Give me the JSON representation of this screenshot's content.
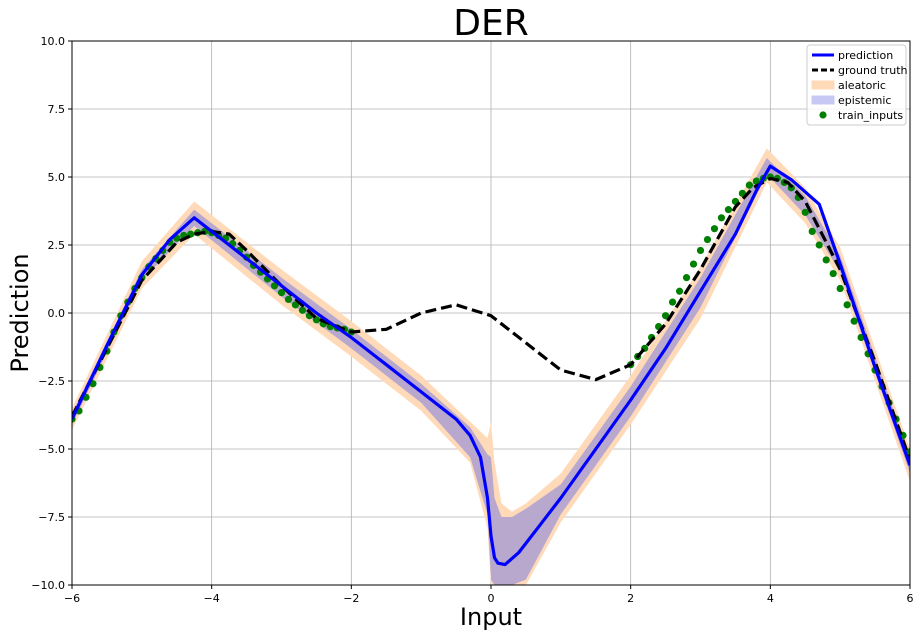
{
  "chart_data": {
    "type": "line",
    "title": "DER",
    "xlabel": "Input",
    "ylabel": "Prediction",
    "xlim": [
      -6,
      6
    ],
    "ylim": [
      -10,
      10
    ],
    "xticks": [
      -6,
      -4,
      -2,
      0,
      2,
      4,
      6
    ],
    "xtick_labels": [
      "−6",
      "−4",
      "−2",
      "0",
      "2",
      "4",
      "6"
    ],
    "yticks": [
      -10,
      -7.5,
      -5,
      -2.5,
      0,
      2.5,
      5,
      7.5,
      10
    ],
    "ytick_labels": [
      "−10.0",
      "−7.5",
      "−5.0",
      "−2.5",
      "0.0",
      "2.5",
      "5.0",
      "7.5",
      "10.0"
    ],
    "grid": true,
    "legend_position": "top-right",
    "colors": {
      "prediction": "#0000ff",
      "ground_truth": "#000000",
      "aleatoric": "#ffdab9",
      "epistemic": "#7f7fdf",
      "train_inputs": "#008000",
      "grid": "#b0b0b0"
    },
    "legend": [
      {
        "label": "prediction",
        "kind": "line",
        "color": "#0000ff"
      },
      {
        "label": "ground truth",
        "kind": "dashed",
        "color": "#000000"
      },
      {
        "label": "aleatoric",
        "kind": "patch",
        "color": "#ffdab9"
      },
      {
        "label": "epistemic",
        "kind": "patch",
        "color": "#c8c8f5"
      },
      {
        "label": "train_inputs",
        "kind": "marker",
        "color": "#008000"
      }
    ],
    "series": [
      {
        "name": "prediction",
        "x": [
          -6,
          -5.5,
          -5,
          -4.6,
          -4.25,
          -4,
          -3.5,
          -3,
          -2.5,
          -2,
          -1.5,
          -1,
          -0.5,
          -0.3,
          -0.15,
          -0.05,
          0,
          0.05,
          0.1,
          0.2,
          0.4,
          0.7,
          1,
          1.5,
          2,
          2.5,
          3,
          3.5,
          3.8,
          4,
          4.3,
          4.7,
          5,
          5.5,
          6
        ],
        "y": [
          -3.9,
          -1.2,
          1.4,
          2.7,
          3.5,
          3.0,
          2.0,
          1.0,
          0.0,
          -0.9,
          -1.9,
          -2.9,
          -3.9,
          -4.5,
          -5.3,
          -6.8,
          -8.2,
          -9.0,
          -9.2,
          -9.25,
          -8.8,
          -7.8,
          -6.8,
          -5.0,
          -3.2,
          -1.3,
          0.8,
          2.9,
          4.5,
          5.4,
          4.9,
          4.0,
          1.8,
          -2.0,
          -5.6
        ]
      },
      {
        "name": "ground truth",
        "x": [
          -6,
          -5.5,
          -5,
          -4.5,
          -4.25,
          -4,
          -3.75,
          -3.5,
          -3,
          -2.5,
          -2,
          -1.5,
          -1,
          -0.5,
          0,
          0.5,
          1,
          1.5,
          2,
          2.5,
          3,
          3.5,
          3.75,
          4,
          4.25,
          4.5,
          5,
          5.5,
          6
        ],
        "y": [
          -3.8,
          -1.3,
          1.2,
          2.6,
          2.9,
          3.0,
          2.9,
          2.3,
          1.0,
          -0.2,
          -0.7,
          -0.6,
          0.0,
          0.3,
          -0.1,
          -1.1,
          -2.1,
          -2.45,
          -1.9,
          -0.4,
          1.6,
          3.9,
          4.6,
          4.95,
          4.8,
          4.1,
          1.6,
          -1.8,
          -5.4
        ]
      },
      {
        "name": "aleatoric",
        "x": [
          -6,
          -5,
          -4.25,
          -3,
          -2,
          -1,
          -0.3,
          -0.05,
          0,
          0.05,
          0.15,
          0.3,
          0.5,
          1,
          2,
          3,
          3.95,
          4.5,
          5,
          6
        ],
        "upper": [
          -3.5,
          1.9,
          4.1,
          1.6,
          -0.3,
          -2.3,
          -4.0,
          -4.6,
          -4.0,
          -5.5,
          -7.0,
          -7.3,
          -7.0,
          -5.9,
          -2.3,
          1.7,
          6.05,
          4.6,
          2.4,
          -5.0
        ],
        "lower": [
          -4.3,
          0.9,
          2.9,
          0.3,
          -1.6,
          -3.6,
          -5.5,
          -7.9,
          -10,
          -10,
          -10,
          -10,
          -10,
          -7.7,
          -4.1,
          -0.2,
          4.8,
          3.3,
          1.2,
          -6.2
        ]
      },
      {
        "name": "epistemic",
        "x": [
          -6,
          -5,
          -4.25,
          -3,
          -2,
          -1,
          -0.3,
          -0.05,
          0,
          0.05,
          0.15,
          0.3,
          0.5,
          1,
          2,
          3,
          3.95,
          4.5,
          5,
          6
        ],
        "upper": [
          -3.7,
          1.6,
          3.8,
          1.3,
          -0.6,
          -2.6,
          -4.2,
          -5.2,
          -5.3,
          -6.8,
          -7.5,
          -7.5,
          -7.2,
          -6.3,
          -2.7,
          1.3,
          5.7,
          4.3,
          2.1,
          -5.3
        ],
        "lower": [
          -4.1,
          1.2,
          3.2,
          0.6,
          -1.3,
          -3.3,
          -5.3,
          -7.4,
          -9.8,
          -10,
          -10,
          -10,
          -9.8,
          -7.4,
          -3.8,
          0.2,
          5.1,
          3.6,
          1.5,
          -5.9
        ]
      },
      {
        "name": "train_inputs",
        "x": [
          -6,
          -5.9,
          -5.8,
          -5.7,
          -5.6,
          -5.5,
          -5.4,
          -5.3,
          -5.2,
          -5.1,
          -5,
          -4.9,
          -4.8,
          -4.7,
          -4.6,
          -4.5,
          -4.4,
          -4.3,
          -4.2,
          -4.1,
          -4,
          -3.9,
          -3.8,
          -3.7,
          -3.6,
          -3.5,
          -3.4,
          -3.3,
          -3.2,
          -3.1,
          -3,
          -2.9,
          -2.8,
          -2.7,
          -2.6,
          -2.5,
          -2.4,
          -2.3,
          -2.2,
          -2.1,
          -2,
          2,
          2.1,
          2.2,
          2.3,
          2.4,
          2.5,
          2.6,
          2.7,
          2.8,
          2.9,
          3,
          3.1,
          3.2,
          3.3,
          3.4,
          3.5,
          3.6,
          3.7,
          3.8,
          3.9,
          4,
          4.1,
          4.2,
          4.3,
          4.4,
          4.5,
          4.6,
          4.7,
          4.8,
          4.9,
          5,
          5.1,
          5.2,
          5.3,
          5.4,
          5.5,
          5.6,
          5.7,
          5.8,
          5.9,
          6
        ],
        "y": [
          -3.9,
          -3.6,
          -3.1,
          -2.6,
          -2.0,
          -1.4,
          -0.7,
          -0.1,
          0.4,
          0.9,
          1.3,
          1.7,
          2.0,
          2.3,
          2.6,
          2.75,
          2.85,
          2.9,
          2.95,
          3.0,
          2.95,
          2.85,
          2.75,
          2.55,
          2.3,
          2.05,
          1.75,
          1.5,
          1.25,
          1.0,
          0.75,
          0.5,
          0.3,
          0.1,
          -0.1,
          -0.25,
          -0.4,
          -0.5,
          -0.55,
          -0.6,
          -0.7,
          -1.9,
          -1.6,
          -1.3,
          -0.9,
          -0.5,
          -0.1,
          0.4,
          0.8,
          1.3,
          1.8,
          2.3,
          2.7,
          3.1,
          3.5,
          3.8,
          4.1,
          4.4,
          4.7,
          4.85,
          4.95,
          5.0,
          4.95,
          4.8,
          4.6,
          4.25,
          3.7,
          3.0,
          2.5,
          1.95,
          1.45,
          0.9,
          0.3,
          -0.3,
          -0.9,
          -1.5,
          -2.1,
          -2.7,
          -3.3,
          -3.9,
          -4.5,
          -5.1
        ]
      }
    ]
  }
}
